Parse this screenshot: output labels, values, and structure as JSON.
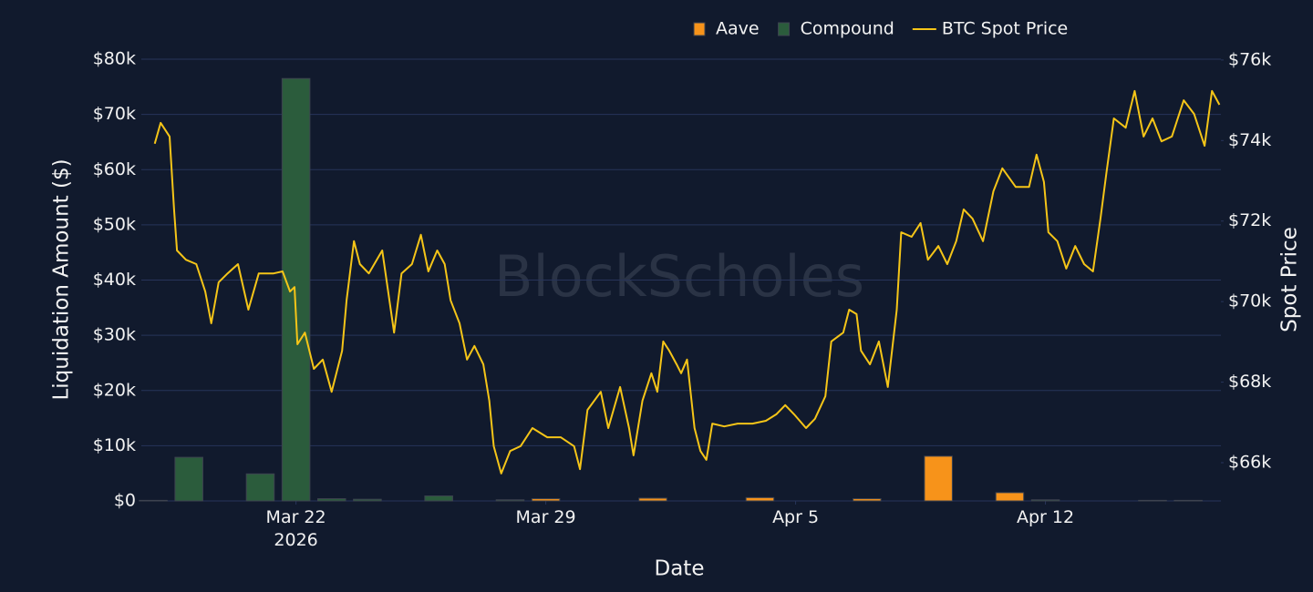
{
  "chart_data": {
    "type": "bar",
    "watermark": "BlockScholes",
    "xlabel": "Date",
    "ylabel": "Liquidation Amount ($)",
    "y2label": "Spot Price",
    "legend": "top",
    "grid": true,
    "stacked": true,
    "xlim": [
      "2026-03-17 16:00",
      "2026-04-16 22:00"
    ],
    "xticks": [
      {
        "value": "2026-03-22",
        "label": "Mar 22\n2026"
      },
      {
        "value": "2026-03-29",
        "label": "Mar 29"
      },
      {
        "value": "2026-04-05",
        "label": "Apr 5"
      },
      {
        "value": "2026-04-12",
        "label": "Apr 12"
      }
    ],
    "ylim": [
      0,
      80000
    ],
    "yticks": [
      {
        "value": 0,
        "label": "$0"
      },
      {
        "value": 10000,
        "label": "$10k"
      },
      {
        "value": 20000,
        "label": "$20k"
      },
      {
        "value": 30000,
        "label": "$30k"
      },
      {
        "value": 40000,
        "label": "$40k"
      },
      {
        "value": 50000,
        "label": "$50k"
      },
      {
        "value": 60000,
        "label": "$60k"
      },
      {
        "value": 70000,
        "label": "$70k"
      },
      {
        "value": 80000,
        "label": "$80k"
      }
    ],
    "y2lim": [
      65050,
      76020
    ],
    "y2ticks": [
      {
        "value": 66000,
        "label": "$66k"
      },
      {
        "value": 68000,
        "label": "$68k"
      },
      {
        "value": 70000,
        "label": "$70k"
      },
      {
        "value": 72000,
        "label": "$72k"
      },
      {
        "value": 74000,
        "label": "$74k"
      },
      {
        "value": 76000,
        "label": "$76k"
      }
    ],
    "x": [
      "2026-03-18",
      "2026-03-19",
      "2026-03-20",
      "2026-03-21",
      "2026-03-22",
      "2026-03-23",
      "2026-03-24",
      "2026-03-25",
      "2026-03-26",
      "2026-03-27",
      "2026-03-28",
      "2026-03-29",
      "2026-03-30",
      "2026-03-31",
      "2026-04-01",
      "2026-04-02",
      "2026-04-03",
      "2026-04-04",
      "2026-04-05",
      "2026-04-06",
      "2026-04-07",
      "2026-04-08",
      "2026-04-09",
      "2026-04-10",
      "2026-04-11",
      "2026-04-12",
      "2026-04-13",
      "2026-04-14",
      "2026-04-15",
      "2026-04-16"
    ],
    "series": [
      {
        "name": "Aave",
        "type": "bar",
        "color": "#f7931a",
        "values": [
          0,
          0,
          0,
          0,
          0,
          0,
          0,
          0,
          0,
          0,
          0,
          400,
          0,
          0,
          500,
          0,
          0,
          600,
          0,
          0,
          400,
          0,
          8100,
          0,
          1500,
          0,
          0,
          0,
          0,
          0
        ]
      },
      {
        "name": "Compound",
        "type": "bar",
        "color": "#2b5c3c",
        "values": [
          100,
          7900,
          0,
          4900,
          76500,
          400,
          300,
          0,
          900,
          0,
          200,
          0,
          0,
          0,
          0,
          0,
          0,
          0,
          0,
          0,
          0,
          0,
          0,
          0,
          0,
          200,
          0,
          0,
          100,
          100
        ]
      },
      {
        "name": "BTC Spot Price",
        "type": "line",
        "axis": "y2",
        "color": "#f5c518",
        "x": [
          "2026-03-18 01:00",
          "2026-03-18 05:00",
          "2026-03-18 11:00",
          "2026-03-18 14:00",
          "2026-03-18 16:00",
          "2026-03-18 22:00",
          "2026-03-19 05:00",
          "2026-03-19 11:00",
          "2026-03-19 15:00",
          "2026-03-19 20:00",
          "2026-03-20 02:00",
          "2026-03-20 09:00",
          "2026-03-20 16:00",
          "2026-03-20 23:00",
          "2026-03-21 09:00",
          "2026-03-21 15:00",
          "2026-03-21 20:00",
          "2026-03-21 23:00",
          "2026-03-22 01:00",
          "2026-03-22 06:00",
          "2026-03-22 12:00",
          "2026-03-22 18:00",
          "2026-03-23 00:00",
          "2026-03-23 07:00",
          "2026-03-23 10:00",
          "2026-03-23 15:00",
          "2026-03-23 19:00",
          "2026-03-24 01:00",
          "2026-03-24 10:00",
          "2026-03-24 18:00",
          "2026-03-24 23:00",
          "2026-03-25 06:00",
          "2026-03-25 12:00",
          "2026-03-25 17:00",
          "2026-03-25 23:00",
          "2026-03-26 04:00",
          "2026-03-26 08:00",
          "2026-03-26 14:00",
          "2026-03-26 19:00",
          "2026-03-27 00:00",
          "2026-03-27 06:00",
          "2026-03-27 10:00",
          "2026-03-27 13:00",
          "2026-03-27 18:00",
          "2026-03-28 00:00",
          "2026-03-28 07:00",
          "2026-03-28 15:00",
          "2026-03-29 01:00",
          "2026-03-29 10:00",
          "2026-03-29 19:00",
          "2026-03-29 23:00",
          "2026-03-30 04:00",
          "2026-03-30 13:00",
          "2026-03-30 18:00",
          "2026-03-31 02:00",
          "2026-03-31 08:00",
          "2026-03-31 11:00",
          "2026-03-31 17:00",
          "2026-03-31 23:00",
          "2026-04-01 03:00",
          "2026-04-01 07:00",
          "2026-04-01 11:00",
          "2026-04-01 16:00",
          "2026-04-01 19:00",
          "2026-04-01 23:00",
          "2026-04-02 04:00",
          "2026-04-02 08:00",
          "2026-04-02 12:00",
          "2026-04-02 16:00",
          "2026-04-03 00:00",
          "2026-04-03 09:00",
          "2026-04-03 19:00",
          "2026-04-04 04:00",
          "2026-04-04 11:00",
          "2026-04-04 17:00",
          "2026-04-04 23:00",
          "2026-04-05 07:00",
          "2026-04-05 13:00",
          "2026-04-05 20:00",
          "2026-04-06 00:00",
          "2026-04-06 08:00",
          "2026-04-06 12:00",
          "2026-04-06 17:00",
          "2026-04-06 20:00",
          "2026-04-07 02:00",
          "2026-04-07 08:00",
          "2026-04-07 14:00",
          "2026-04-07 20:00",
          "2026-04-07 23:00",
          "2026-04-08 06:00",
          "2026-04-08 12:00",
          "2026-04-08 17:00",
          "2026-04-09 00:00",
          "2026-04-09 06:00",
          "2026-04-09 12:00",
          "2026-04-09 17:00",
          "2026-04-09 23:00",
          "2026-04-10 06:00",
          "2026-04-10 13:00",
          "2026-04-10 19:00",
          "2026-04-11 04:00",
          "2026-04-11 13:00",
          "2026-04-11 18:00",
          "2026-04-11 23:00",
          "2026-04-12 02:00",
          "2026-04-12 08:00",
          "2026-04-12 14:00",
          "2026-04-12 20:00",
          "2026-04-13 02:00",
          "2026-04-13 08:00",
          "2026-04-13 13:00",
          "2026-04-13 17:00",
          "2026-04-13 22:00",
          "2026-04-14 06:00",
          "2026-04-14 12:00",
          "2026-04-14 18:00",
          "2026-04-15 00:00",
          "2026-04-15 06:00",
          "2026-04-15 13:00",
          "2026-04-15 21:00",
          "2026-04-16 04:00",
          "2026-04-16 11:00",
          "2026-04-16 16:00",
          "2026-04-16 21:00"
        ],
        "values": [
          73920,
          74440,
          74100,
          72290,
          71270,
          71040,
          70930,
          70250,
          69460,
          70480,
          70700,
          70930,
          69800,
          70700,
          70700,
          70750,
          70250,
          70360,
          68940,
          69230,
          68330,
          68560,
          67760,
          68780,
          70030,
          71500,
          70930,
          70700,
          71270,
          69230,
          70700,
          70930,
          71660,
          70750,
          71270,
          70930,
          70030,
          69460,
          68560,
          68900,
          68440,
          67540,
          66410,
          65730,
          66290,
          66410,
          66860,
          66630,
          66630,
          66410,
          65840,
          67310,
          67760,
          66860,
          67880,
          66860,
          66180,
          67540,
          68220,
          67760,
          69010,
          68780,
          68440,
          68220,
          68560,
          66860,
          66290,
          66070,
          66970,
          66900,
          66970,
          66970,
          67040,
          67200,
          67430,
          67200,
          66860,
          67090,
          67650,
          69010,
          69230,
          69800,
          69690,
          68780,
          68440,
          69010,
          67880,
          69800,
          71720,
          71610,
          71950,
          71040,
          71380,
          70930,
          71500,
          72290,
          72060,
          71500,
          72740,
          73310,
          72850,
          72850,
          73650,
          72970,
          71720,
          71500,
          70820,
          71380,
          70930,
          70750,
          72060,
          73190,
          74550,
          74320,
          75230,
          74100,
          74550,
          73980,
          74100,
          75000,
          74660,
          73870,
          75230,
          74890
        ]
      }
    ]
  }
}
